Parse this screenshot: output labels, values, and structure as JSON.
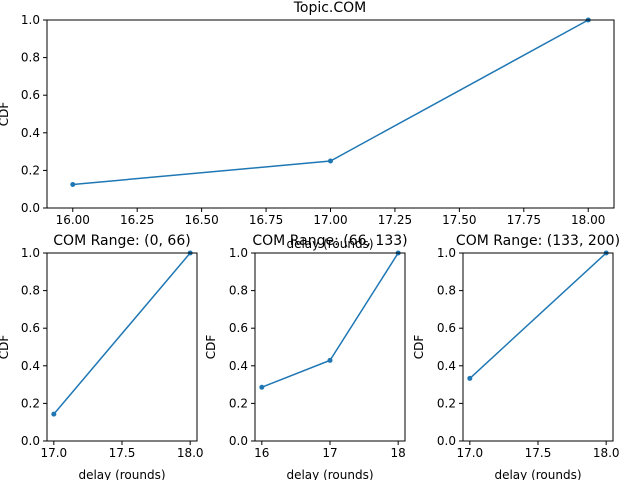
{
  "figure": {
    "background": "#ffffff"
  },
  "chart_data": [
    {
      "type": "line",
      "title": "Topic.COM",
      "xlabel": "delay (rounds)",
      "ylabel": "CDF",
      "xlim": [
        15.9,
        18.1
      ],
      "ylim": [
        0,
        1
      ],
      "xticks": [
        16.0,
        16.25,
        16.5,
        16.75,
        17.0,
        17.25,
        17.5,
        17.75,
        18.0
      ],
      "xtick_labels": [
        "16.00",
        "16.25",
        "16.50",
        "16.75",
        "17.00",
        "17.25",
        "17.50",
        "17.75",
        "18.00"
      ],
      "yticks": [
        0,
        0.2,
        0.4,
        0.6,
        0.8,
        1.0
      ],
      "ytick_labels": [
        "0.0",
        "0.2",
        "0.4",
        "0.6",
        "0.8",
        "1.0"
      ],
      "grid": false,
      "color": "#1f77b4",
      "series": [
        {
          "x": [
            16,
            17,
            18
          ],
          "y": [
            0.125,
            0.25,
            1.0
          ]
        }
      ]
    },
    {
      "type": "line",
      "title": "COM Range: (0, 66)",
      "xlabel": "delay (rounds)",
      "ylabel": "CDF",
      "xlim": [
        16.95,
        18.05
      ],
      "ylim": [
        0,
        1
      ],
      "xticks": [
        17.0,
        17.5,
        18.0
      ],
      "xtick_labels": [
        "17.0",
        "17.5",
        "18.0"
      ],
      "yticks": [
        0,
        0.2,
        0.4,
        0.6,
        0.8,
        1.0
      ],
      "ytick_labels": [
        "0.0",
        "0.2",
        "0.4",
        "0.6",
        "0.8",
        "1.0"
      ],
      "grid": false,
      "color": "#1f77b4",
      "series": [
        {
          "x": [
            17,
            18
          ],
          "y": [
            0.143,
            1.0
          ]
        }
      ]
    },
    {
      "type": "line",
      "title": "COM Range: (66, 133)",
      "xlabel": "delay (rounds)",
      "ylabel": "CDF",
      "xlim": [
        15.9,
        18.1
      ],
      "ylim": [
        0,
        1
      ],
      "xticks": [
        16,
        17,
        18
      ],
      "xtick_labels": [
        "16",
        "17",
        "18"
      ],
      "yticks": [
        0,
        0.2,
        0.4,
        0.6,
        0.8,
        1.0
      ],
      "ytick_labels": [
        "0.0",
        "0.2",
        "0.4",
        "0.6",
        "0.8",
        "1.0"
      ],
      "grid": false,
      "color": "#1f77b4",
      "series": [
        {
          "x": [
            16,
            17,
            18
          ],
          "y": [
            0.286,
            0.429,
            1.0
          ]
        }
      ]
    },
    {
      "type": "line",
      "title": "COM Range: (133, 200)",
      "xlabel": "delay (rounds)",
      "ylabel": "CDF",
      "xlim": [
        16.95,
        18.05
      ],
      "ylim": [
        0,
        1
      ],
      "xticks": [
        17.0,
        17.5,
        18.0
      ],
      "xtick_labels": [
        "17.0",
        "17.5",
        "18.0"
      ],
      "yticks": [
        0,
        0.2,
        0.4,
        0.6,
        0.8,
        1.0
      ],
      "ytick_labels": [
        "0.0",
        "0.2",
        "0.4",
        "0.6",
        "0.8",
        "1.0"
      ],
      "grid": false,
      "color": "#1f77b4",
      "series": [
        {
          "x": [
            17,
            18
          ],
          "y": [
            0.333,
            1.0
          ]
        }
      ]
    }
  ]
}
